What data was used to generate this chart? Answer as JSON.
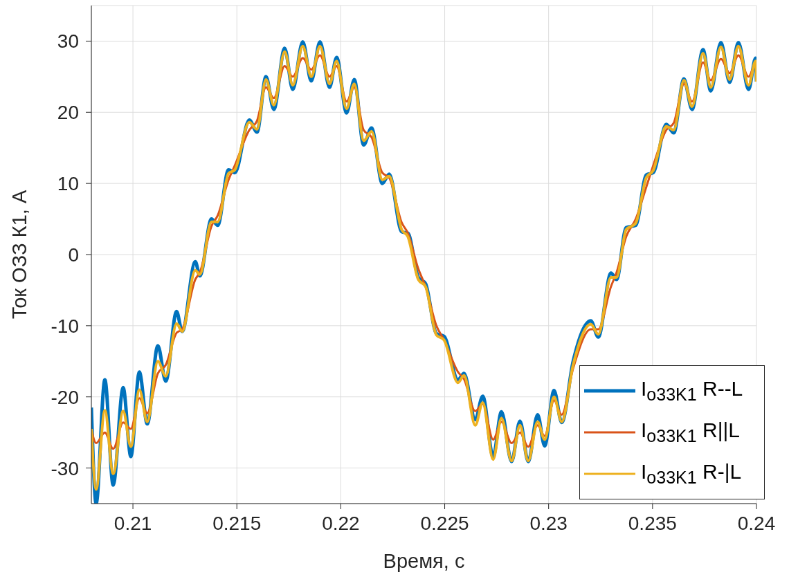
{
  "chart_data": {
    "type": "line",
    "xlabel": "Время, с",
    "ylabel": "Ток ОЗЗ К1, А",
    "x": [
      0.208,
      0.20823,
      0.20865,
      0.20905,
      0.20953,
      0.2099,
      0.21031,
      0.21069,
      0.2112,
      0.21158,
      0.2121,
      0.21237,
      0.213,
      0.21322,
      0.21378,
      0.21408,
      0.2146,
      0.2149,
      0.2156,
      0.21597,
      0.2164,
      0.21678,
      0.2173,
      0.21769,
      0.21817,
      0.21858,
      0.219,
      0.21946,
      0.2198,
      0.22028,
      0.22065,
      0.2211,
      0.22148,
      0.222,
      0.22233,
      0.22293,
      0.22323,
      0.22373,
      0.22408,
      0.2246,
      0.22497,
      0.22564,
      0.22593,
      0.22647,
      0.22683,
      0.22733,
      0.22773,
      0.22822,
      0.22862,
      0.22902,
      0.22947,
      0.22981,
      0.23026,
      0.23063,
      0.23118,
      0.23203,
      0.23239,
      0.233,
      0.23327,
      0.23373,
      0.23419,
      0.2347,
      0.23503,
      0.23566,
      0.23602,
      0.23651,
      0.2369,
      0.23743,
      0.2378,
      0.23829,
      0.23871,
      0.23913,
      0.23962,
      0.23996,
      0.24
    ],
    "series": [
      {
        "name": "I$_{o33K1}$ R--L",
        "color": "#0072bd",
        "values": [
          -21.5,
          -35,
          -17.6,
          -32.4,
          -18.7,
          -28.4,
          -16.5,
          -23.8,
          -12.8,
          -17.8,
          -8.0,
          -10.8,
          -1.0,
          -3.0,
          5.0,
          4.1,
          11.9,
          11.5,
          18.9,
          17.2,
          25.0,
          20.4,
          29.0,
          23.2,
          29.9,
          24.4,
          29.9,
          23.5,
          27.7,
          19.9,
          24.6,
          15.4,
          17.8,
          10.0,
          11.3,
          3.2,
          3.0,
          -3.2,
          -4.1,
          -11.1,
          -11.5,
          -17.6,
          -16.7,
          -23.2,
          -19.9,
          -28.4,
          -22.1,
          -29.1,
          -23.4,
          -29.1,
          -22.5,
          -26.9,
          -19.1,
          -23.6,
          -15.0,
          -9.3,
          -11.6,
          -2.6,
          -3.5,
          3.8,
          4.1,
          11.2,
          11.5,
          18.3,
          17.1,
          24.7,
          20.4,
          28.8,
          23.0,
          29.8,
          24.2,
          29.8,
          23.2,
          27.6,
          24.3
        ]
      },
      {
        "name": "I$_{o33K1}$ R||L",
        "color": "#d95319",
        "values": [
          -24.5,
          -26.5,
          -25,
          -27.3,
          -23.6,
          -24.5,
          -20.2,
          -22.3,
          -16.7,
          -15.5,
          -11,
          -10.5,
          -3.5,
          -2.5,
          4.0,
          5.5,
          10.5,
          12.5,
          17.5,
          18.8,
          23.5,
          22.0,
          26.5,
          25.0,
          27.6,
          26.0,
          28.0,
          25.0,
          26.5,
          21.5,
          23.5,
          17.5,
          16.5,
          11.5,
          10.8,
          4.5,
          3.0,
          -2.0,
          -4.5,
          -10.0,
          -12.0,
          -16.5,
          -17.5,
          -22.0,
          -21.0,
          -26.0,
          -23.5,
          -26.5,
          -25.0,
          -27.0,
          -24.0,
          -25.5,
          -20.5,
          -22.5,
          -16.0,
          -10.5,
          -10.5,
          -4.5,
          -2.5,
          2.5,
          5.0,
          9.5,
          12.5,
          17.5,
          18.5,
          24.0,
          21.5,
          27.0,
          24.5,
          27.5,
          25.5,
          28.0,
          25.0,
          26.8,
          24.5
        ]
      },
      {
        "name": "I$_{o33K1}$ R-|L",
        "color": "#edb120",
        "values": [
          -24.5,
          -33,
          -21.9,
          -30.8,
          -22,
          -27,
          -19,
          -23.5,
          -15,
          -17.1,
          -9.7,
          -10.8,
          -2.2,
          -2.8,
          4.6,
          4.6,
          11.4,
          11.9,
          18.6,
          17.6,
          24.6,
          21.0,
          28.5,
          23.8,
          29.3,
          25.0,
          29.3,
          24.0,
          27.2,
          20.5,
          24.0,
          16.0,
          17.3,
          10.5,
          11.0,
          3.5,
          2.5,
          -3.5,
          -4.5,
          -11.3,
          -12.0,
          -18.0,
          -17.0,
          -24.0,
          -20.8,
          -28.8,
          -23.0,
          -29.0,
          -24.0,
          -29.0,
          -23.5,
          -26.0,
          -20.0,
          -23.5,
          -15.5,
          -9.8,
          -11.2,
          -3.2,
          -3.2,
          3.5,
          4.4,
          10.8,
          11.8,
          18.0,
          17.5,
          24.5,
          20.8,
          28.3,
          23.5,
          29.2,
          24.6,
          29.3,
          23.8,
          27.2,
          24.3
        ]
      }
    ],
    "xlim": [
      0.208,
      0.24
    ],
    "xticks": [
      0.21,
      0.215,
      0.22,
      0.225,
      0.23,
      0.235,
      0.24
    ],
    "ylim": [
      -35,
      35
    ],
    "yticks": [
      -30,
      -20,
      -10,
      0,
      10,
      20,
      30
    ],
    "grid": true,
    "legend": "bottom right",
    "marker": "none",
    "line_style": "solid"
  }
}
